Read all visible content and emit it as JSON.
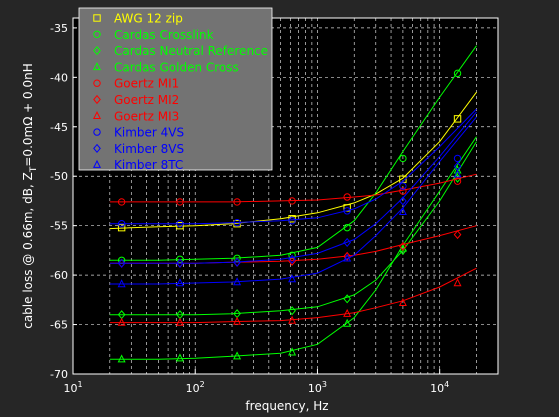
{
  "figure": {
    "background": "#262626",
    "plot_background": "#000000",
    "grid_color": "#ffffff",
    "axis_text_color": "#ffffff",
    "legend_background": "#737373"
  },
  "chart_data": {
    "type": "line",
    "title": "",
    "xlabel": "frequency, Hz",
    "ylabel": "cable loss @ 0.66m, dB, Z_T=0.0mΩ + 0.0nH",
    "ylabel_parts": {
      "main": "cable loss @ 0.66m, dB, Z",
      "sub": "T",
      "rest": "=0.0mΩ + 0.0nH"
    },
    "x_scale": "log",
    "xlim": [
      10,
      30000
    ],
    "ylim": [
      -70,
      -34
    ],
    "grid": true,
    "grid_style": "dashed",
    "legend_position": "top-left",
    "x_ticks": [
      {
        "value": 10,
        "base": "10",
        "exp": "1"
      },
      {
        "value": 100,
        "base": "10",
        "exp": "2"
      },
      {
        "value": 1000,
        "base": "10",
        "exp": "3"
      },
      {
        "value": 10000,
        "base": "10",
        "exp": "4"
      }
    ],
    "y_ticks": [
      {
        "value": -35,
        "label": "-35"
      },
      {
        "value": -40,
        "label": "-40"
      },
      {
        "value": -45,
        "label": "-45"
      },
      {
        "value": -50,
        "label": "-50"
      },
      {
        "value": -55,
        "label": "-55"
      },
      {
        "value": -60,
        "label": "-60"
      },
      {
        "value": -65,
        "label": "-65"
      },
      {
        "value": -70,
        "label": "-70"
      }
    ],
    "series": [
      {
        "name": "AWG 12 zip",
        "color": "#ffff00",
        "marker": "square",
        "x": [
          20,
          50,
          100,
          200,
          500,
          1000,
          2000,
          3000,
          5000,
          10000,
          20000
        ],
        "y": [
          -55.3,
          -55.1,
          -55.0,
          -54.8,
          -54.3,
          -53.7,
          -52.7,
          -51.8,
          -50.2,
          -46.5,
          -41.5
        ],
        "marker_x": [
          25,
          75,
          220,
          620,
          1750,
          5000,
          14000
        ],
        "marker_y": [
          -55.2,
          -55.0,
          -54.8,
          -54.3,
          -53.2,
          -50.3,
          -44.2
        ]
      },
      {
        "name": "Cardas Crosslink",
        "color": "#00ff00",
        "marker": "circle",
        "x": [
          20,
          50,
          100,
          200,
          500,
          1000,
          2000,
          3000,
          5000,
          10000,
          20000
        ],
        "y": [
          -58.5,
          -58.5,
          -58.4,
          -58.3,
          -58.0,
          -57.2,
          -54.5,
          -51.7,
          -47.5,
          -42.0,
          -36.8
        ],
        "marker_x": [
          25,
          75,
          220,
          620,
          1750,
          5000,
          14000
        ],
        "marker_y": [
          -58.5,
          -58.4,
          -58.3,
          -58.0,
          -55.2,
          -48.2,
          -39.6
        ]
      },
      {
        "name": "Cardas Neutral Reference",
        "color": "#00ff00",
        "marker": "diamond",
        "x": [
          20,
          50,
          100,
          200,
          500,
          1000,
          2000,
          3000,
          5000,
          10000,
          20000
        ],
        "y": [
          -64.0,
          -64.0,
          -64.0,
          -63.9,
          -63.6,
          -63.2,
          -62.0,
          -60.5,
          -57.5,
          -52.5,
          -46.5
        ],
        "marker_x": [
          25,
          75,
          220,
          620,
          1750,
          5000,
          14000
        ],
        "marker_y": [
          -64.0,
          -64.0,
          -63.9,
          -63.6,
          -62.4,
          -57.5,
          -50.2
        ]
      },
      {
        "name": "Cardas Golden Cross",
        "color": "#00ff00",
        "marker": "triangle",
        "x": [
          20,
          50,
          100,
          200,
          500,
          1000,
          2000,
          3000,
          5000,
          10000,
          20000
        ],
        "y": [
          -68.5,
          -68.5,
          -68.4,
          -68.2,
          -67.9,
          -67.0,
          -64.3,
          -61.5,
          -57.0,
          -51.5,
          -46.0
        ],
        "marker_x": [
          25,
          75,
          220,
          620,
          1750,
          5000,
          14000
        ],
        "marker_y": [
          -68.5,
          -68.4,
          -68.2,
          -67.8,
          -64.9,
          -57.3,
          -49.4
        ]
      },
      {
        "name": "Goertz MI1",
        "color": "#ff0000",
        "marker": "circle",
        "x": [
          20,
          50,
          100,
          200,
          500,
          1000,
          2000,
          3000,
          5000,
          10000,
          20000
        ],
        "y": [
          -52.6,
          -52.6,
          -52.6,
          -52.6,
          -52.5,
          -52.4,
          -52.1,
          -51.9,
          -51.4,
          -50.7,
          -49.8
        ],
        "marker_x": [
          25,
          75,
          220,
          620,
          1750,
          5000,
          14000
        ],
        "marker_y": [
          -52.6,
          -52.6,
          -52.6,
          -52.5,
          -52.1,
          -51.5,
          -50.5
        ]
      },
      {
        "name": "Goertz MI2",
        "color": "#ff0000",
        "marker": "diamond",
        "x": [
          20,
          50,
          100,
          200,
          500,
          1000,
          2000,
          3000,
          5000,
          10000,
          20000
        ],
        "y": [
          -58.8,
          -58.8,
          -58.8,
          -58.7,
          -58.6,
          -58.4,
          -58.0,
          -57.6,
          -56.9,
          -56.0,
          -55.0
        ],
        "marker_x": [
          25,
          75,
          220,
          620,
          1750,
          5000,
          14000
        ],
        "marker_y": [
          -58.8,
          -58.8,
          -58.7,
          -58.6,
          -58.1,
          -57.1,
          -55.9
        ]
      },
      {
        "name": "Goertz MI3",
        "color": "#ff0000",
        "marker": "triangle",
        "x": [
          20,
          50,
          100,
          200,
          500,
          1000,
          2000,
          3000,
          5000,
          10000,
          20000
        ],
        "y": [
          -64.8,
          -64.8,
          -64.8,
          -64.7,
          -64.6,
          -64.3,
          -63.8,
          -63.3,
          -62.6,
          -61.2,
          -59.3
        ],
        "marker_x": [
          25,
          75,
          220,
          620,
          1750,
          5000,
          14000
        ],
        "marker_y": [
          -64.8,
          -64.8,
          -64.7,
          -64.6,
          -63.9,
          -62.8,
          -60.8
        ]
      },
      {
        "name": "Kimber 4VS",
        "color": "#0000ff",
        "marker": "circle",
        "x": [
          20,
          50,
          100,
          200,
          500,
          1000,
          2000,
          3000,
          5000,
          10000,
          20000
        ],
        "y": [
          -54.8,
          -54.8,
          -54.8,
          -54.7,
          -54.5,
          -54.2,
          -53.3,
          -52.3,
          -50.5,
          -47.0,
          -43.2
        ],
        "marker_x": [
          25,
          75,
          220,
          620,
          1750,
          5000,
          14000
        ],
        "marker_y": [
          -54.8,
          -54.8,
          -54.7,
          -54.5,
          -53.5,
          -51.0,
          -48.2
        ]
      },
      {
        "name": "Kimber 8VS",
        "color": "#0000ff",
        "marker": "diamond",
        "x": [
          20,
          50,
          100,
          200,
          500,
          1000,
          2000,
          3000,
          5000,
          10000,
          20000
        ],
        "y": [
          -58.8,
          -58.8,
          -58.8,
          -58.7,
          -58.4,
          -57.8,
          -56.4,
          -54.8,
          -52.2,
          -48.0,
          -43.5
        ],
        "marker_x": [
          25,
          75,
          220,
          620,
          1750,
          5000,
          14000
        ],
        "marker_y": [
          -58.8,
          -58.8,
          -58.7,
          -58.4,
          -56.7,
          -52.5,
          -49.0
        ]
      },
      {
        "name": "Kimber 8TC",
        "color": "#0000ff",
        "marker": "triangle",
        "x": [
          20,
          50,
          100,
          200,
          500,
          1000,
          2000,
          3000,
          5000,
          10000,
          20000
        ],
        "y": [
          -60.9,
          -60.9,
          -60.8,
          -60.7,
          -60.4,
          -59.8,
          -58.0,
          -56.0,
          -53.2,
          -48.5,
          -44.0
        ],
        "marker_x": [
          25,
          75,
          220,
          620,
          1750,
          5000,
          14000
        ],
        "marker_y": [
          -60.9,
          -60.8,
          -60.7,
          -60.4,
          -58.3,
          -53.6,
          -49.8
        ]
      }
    ]
  }
}
